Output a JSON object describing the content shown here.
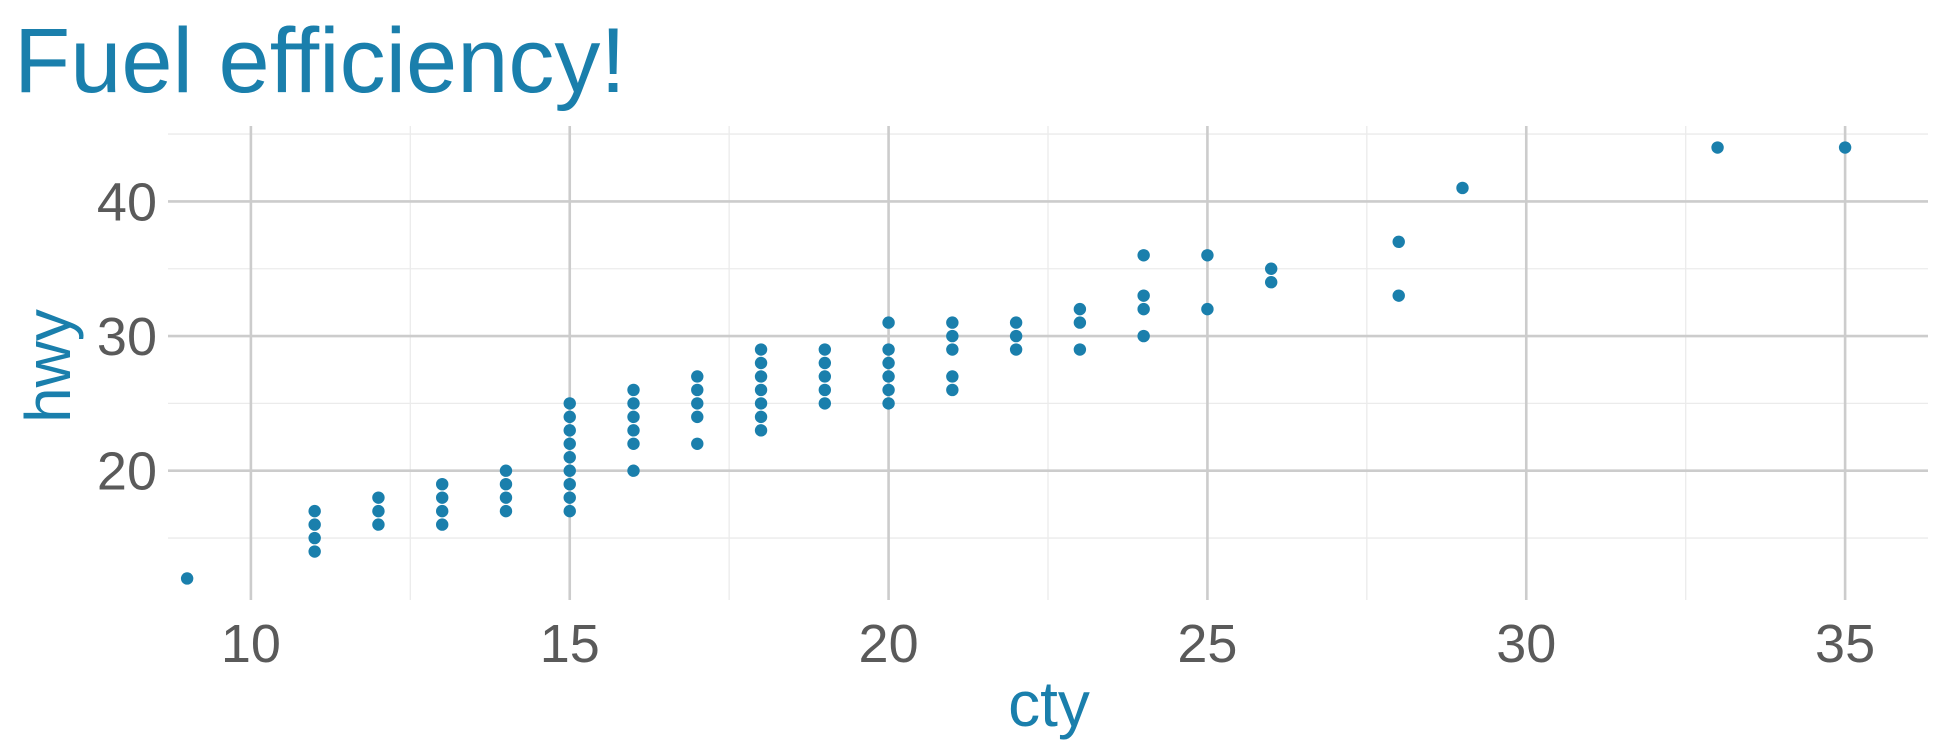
{
  "colors": {
    "accent": "#1a7fac",
    "point": "#1a7fac",
    "tick_text": "#5a5a5a",
    "grid_major": "#cccccc",
    "grid_minor": "#ebebeb",
    "background": "#ffffff"
  },
  "chart_data": {
    "type": "scatter",
    "title": "Fuel efficiency!",
    "xlabel": "cty",
    "ylabel": "hwy",
    "xlim": [
      8.7,
      36.3
    ],
    "ylim": [
      10.4,
      45.6
    ],
    "x_ticks": [
      10,
      15,
      20,
      25,
      30,
      35
    ],
    "y_ticks": [
      20,
      30,
      40
    ],
    "x_minor_ticks": [
      12.5,
      17.5,
      22.5,
      27.5,
      32.5
    ],
    "y_minor_ticks": [
      15,
      25,
      35,
      45
    ],
    "grid": true,
    "legend": "none",
    "points": [
      [
        9,
        12
      ],
      [
        11,
        14
      ],
      [
        11,
        15
      ],
      [
        11,
        16
      ],
      [
        11,
        17
      ],
      [
        12,
        16
      ],
      [
        12,
        17
      ],
      [
        12,
        18
      ],
      [
        13,
        16
      ],
      [
        13,
        17
      ],
      [
        13,
        18
      ],
      [
        13,
        19
      ],
      [
        14,
        17
      ],
      [
        14,
        18
      ],
      [
        14,
        19
      ],
      [
        14,
        20
      ],
      [
        15,
        17
      ],
      [
        15,
        18
      ],
      [
        15,
        19
      ],
      [
        15,
        20
      ],
      [
        15,
        21
      ],
      [
        15,
        22
      ],
      [
        15,
        23
      ],
      [
        15,
        24
      ],
      [
        15,
        25
      ],
      [
        16,
        20
      ],
      [
        16,
        22
      ],
      [
        16,
        23
      ],
      [
        16,
        24
      ],
      [
        16,
        25
      ],
      [
        16,
        26
      ],
      [
        17,
        22
      ],
      [
        17,
        24
      ],
      [
        17,
        25
      ],
      [
        17,
        26
      ],
      [
        17,
        27
      ],
      [
        18,
        23
      ],
      [
        18,
        24
      ],
      [
        18,
        25
      ],
      [
        18,
        26
      ],
      [
        18,
        27
      ],
      [
        18,
        28
      ],
      [
        18,
        29
      ],
      [
        19,
        25
      ],
      [
        19,
        26
      ],
      [
        19,
        27
      ],
      [
        19,
        28
      ],
      [
        19,
        29
      ],
      [
        20,
        25
      ],
      [
        20,
        26
      ],
      [
        20,
        27
      ],
      [
        20,
        28
      ],
      [
        20,
        29
      ],
      [
        20,
        31
      ],
      [
        21,
        26
      ],
      [
        21,
        27
      ],
      [
        21,
        29
      ],
      [
        21,
        30
      ],
      [
        21,
        31
      ],
      [
        22,
        29
      ],
      [
        22,
        30
      ],
      [
        22,
        31
      ],
      [
        23,
        29
      ],
      [
        23,
        31
      ],
      [
        23,
        32
      ],
      [
        24,
        30
      ],
      [
        24,
        32
      ],
      [
        24,
        33
      ],
      [
        24,
        36
      ],
      [
        25,
        32
      ],
      [
        25,
        36
      ],
      [
        26,
        34
      ],
      [
        26,
        35
      ],
      [
        28,
        33
      ],
      [
        28,
        37
      ],
      [
        29,
        41
      ],
      [
        33,
        44
      ],
      [
        35,
        44
      ]
    ]
  }
}
